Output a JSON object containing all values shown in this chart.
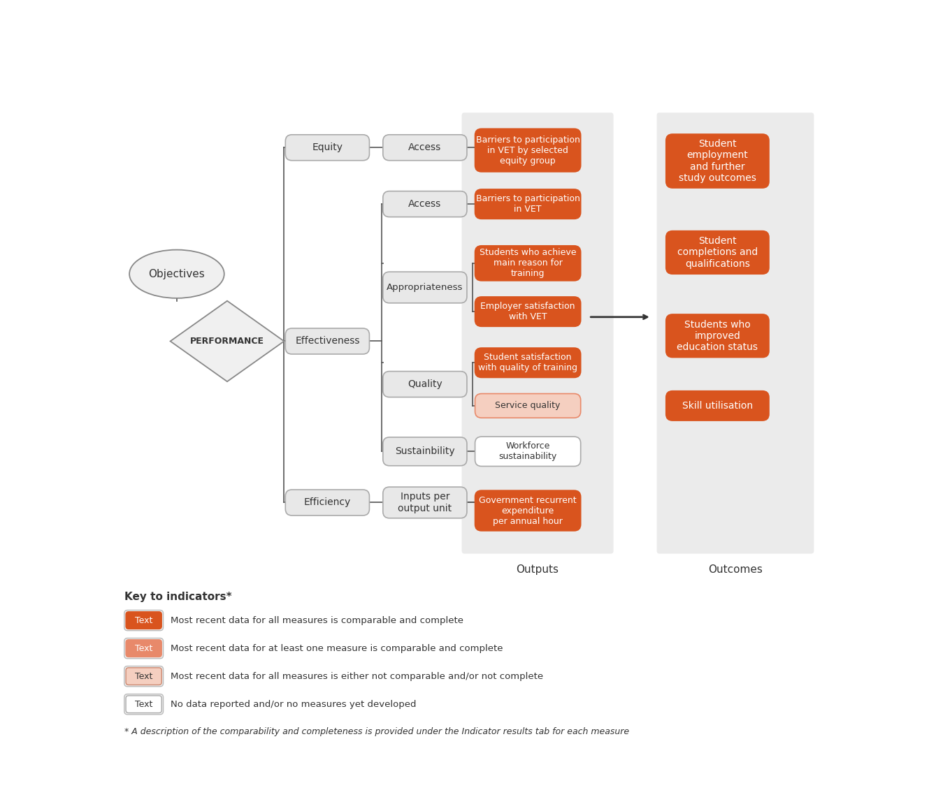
{
  "bg_color": "#ffffff",
  "panel_bg": "#ebebeb",
  "orange_dark": "#d9541e",
  "orange_mid": "#e8896a",
  "orange_light": "#f5cfc0",
  "white_box": "#ffffff",
  "light_box": "#e8e8e8",
  "box_border": "#aaaaaa",
  "text_dark": "#333333",
  "text_white": "#ffffff",
  "line_color": "#555555",
  "outputs_label": "Outputs",
  "outcomes_label": "Outcomes",
  "key_title": "Key to indicators*",
  "key_items": [
    {
      "color": "#d9541e",
      "text_color": "#ffffff",
      "border": "#d9541e",
      "label": "Most recent data for all measures is comparable and complete"
    },
    {
      "color": "#e8896a",
      "text_color": "#ffffff",
      "border": "#e8896a",
      "label": "Most recent data for at least one measure is comparable and complete"
    },
    {
      "color": "#f5cfc0",
      "text_color": "#333333",
      "border": "#cc8870",
      "label": "Most recent data for all measures is either not comparable and/or not complete"
    },
    {
      "color": "#ffffff",
      "text_color": "#333333",
      "border": "#aaaaaa",
      "label": "No data reported and/or no measures yet developed"
    }
  ],
  "footnote": "* A description of the comparability and completeness is provided under the Indicator results tab for each measure"
}
